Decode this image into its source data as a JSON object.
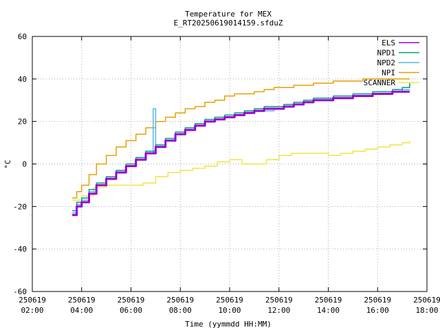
{
  "chart_data": {
    "type": "line",
    "title": "Temperature for MEX",
    "subtitle": "E_RT20250619014159.sfduZ",
    "xlabel": "Time (yymmdd HH:MM)",
    "ylabel": "°C",
    "xlim": [
      2,
      18
    ],
    "ylim": [
      -60,
      60
    ],
    "xticks": [
      {
        "x": 2,
        "date": "250619",
        "time": "02:00"
      },
      {
        "x": 4,
        "date": "250619",
        "time": "04:00"
      },
      {
        "x": 6,
        "date": "250619",
        "time": "06:00"
      },
      {
        "x": 8,
        "date": "250619",
        "time": "08:00"
      },
      {
        "x": 10,
        "date": "250619",
        "time": "10:00"
      },
      {
        "x": 12,
        "date": "250619",
        "time": "12:00"
      },
      {
        "x": 14,
        "date": "250619",
        "time": "14:00"
      },
      {
        "x": 16,
        "date": "250619",
        "time": "16:00"
      },
      {
        "x": 18,
        "date": "250619",
        "time": "18:00"
      }
    ],
    "yticks": [
      -60,
      -40,
      -20,
      0,
      20,
      40,
      60
    ],
    "grid": true,
    "legend_position": "top-right",
    "series": [
      {
        "name": "ELS",
        "color": "#9400d3",
        "x": [
          3.62,
          3.8,
          4.0,
          4.3,
          4.6,
          5.0,
          5.4,
          5.8,
          6.2,
          6.6,
          7.0,
          7.4,
          7.8,
          8.2,
          8.6,
          9.0,
          9.4,
          9.8,
          10.2,
          10.6,
          11.0,
          11.4,
          11.8,
          12.2,
          12.6,
          13.0,
          13.4,
          13.8,
          14.2,
          14.6,
          15.0,
          15.4,
          15.8,
          16.2,
          16.6,
          17.0,
          17.3
        ],
        "y": [
          -24,
          -20,
          -18,
          -14,
          -10,
          -7,
          -4,
          -1,
          2,
          5,
          8,
          11,
          14,
          16,
          18,
          20,
          21,
          22,
          23,
          24,
          25,
          26,
          26,
          27,
          28,
          29,
          30,
          30,
          31,
          31,
          32,
          32,
          33,
          33,
          34,
          34,
          34
        ]
      },
      {
        "name": "NPD1",
        "color": "#009e73",
        "x": [
          3.62,
          3.8,
          4.0,
          4.3,
          4.6,
          5.0,
          5.4,
          5.8,
          6.2,
          6.6,
          7.0,
          7.4,
          7.8,
          8.2,
          8.6,
          9.0,
          9.4,
          9.8,
          10.2,
          10.6,
          11.0,
          11.4,
          11.8,
          12.2,
          12.6,
          13.0,
          13.4,
          13.8,
          14.2,
          14.6,
          15.0,
          15.4,
          15.8,
          16.2,
          16.6,
          17.0,
          17.3
        ],
        "y": [
          -22,
          -18,
          -16,
          -12,
          -9,
          -6,
          -3,
          0,
          3,
          6,
          9,
          12,
          15,
          17,
          19,
          21,
          22,
          23,
          24,
          25,
          26,
          27,
          27,
          28,
          29,
          30,
          31,
          31,
          32,
          32,
          33,
          33,
          34,
          34,
          35,
          36,
          38
        ]
      },
      {
        "name": "NPD2",
        "color": "#56b4e9",
        "x": [
          3.62,
          3.8,
          4.0,
          4.3,
          4.6,
          5.0,
          5.4,
          5.8,
          6.2,
          6.6,
          6.9,
          7.0,
          7.4,
          7.8,
          8.2,
          8.6,
          9.0,
          9.4,
          9.8,
          10.2,
          10.6,
          11.0,
          11.4,
          11.8,
          12.2,
          12.6,
          13.0,
          13.4,
          13.8,
          14.2,
          14.6,
          15.0,
          15.4,
          15.8,
          16.2,
          16.6,
          17.0,
          17.3
        ],
        "y": [
          -23,
          -19,
          -17,
          -13,
          -10,
          -7,
          -4,
          -1,
          2,
          5,
          26,
          8,
          11,
          14,
          16,
          18,
          20,
          21,
          22,
          23,
          24,
          25,
          25,
          26,
          27,
          28,
          29,
          30,
          30,
          31,
          31,
          32,
          32,
          33,
          33,
          34,
          35,
          35
        ]
      },
      {
        "name": "NPI",
        "color": "#e69f00",
        "x": [
          3.62,
          3.8,
          4.0,
          4.3,
          4.6,
          5.0,
          5.4,
          5.8,
          6.2,
          6.6,
          7.0,
          7.4,
          7.8,
          8.2,
          8.6,
          9.0,
          9.4,
          9.8,
          10.2,
          10.6,
          11.0,
          11.4,
          11.8,
          12.2,
          12.6,
          13.0,
          13.4,
          13.8,
          14.2,
          14.6,
          15.0,
          15.4,
          15.8,
          16.2,
          16.6,
          17.0,
          17.3
        ],
        "y": [
          -16,
          -13,
          -10,
          -5,
          0,
          4,
          8,
          11,
          14,
          17,
          20,
          22,
          24,
          26,
          27,
          29,
          30,
          32,
          33,
          33,
          34,
          35,
          36,
          36,
          37,
          37,
          38,
          38,
          39,
          39,
          39,
          40,
          40,
          40,
          40,
          40,
          40
        ]
      },
      {
        "name": "SCANNER",
        "color": "#f0e442",
        "x": [
          3.62,
          4.0,
          4.5,
          5.0,
          5.5,
          6.0,
          6.5,
          7.0,
          7.5,
          8.0,
          8.5,
          9.0,
          9.5,
          10.0,
          10.5,
          11.0,
          11.5,
          12.0,
          12.5,
          13.0,
          13.5,
          14.0,
          14.5,
          15.0,
          15.5,
          16.0,
          16.5,
          17.0,
          17.3
        ],
        "y": [
          -17,
          -15,
          -11,
          -10,
          -10,
          -10,
          -9,
          -6,
          -4,
          -3,
          -2,
          -1,
          1,
          2,
          0,
          0,
          2,
          4,
          5,
          5,
          5,
          4,
          5,
          6,
          7,
          8,
          9,
          10,
          11
        ]
      }
    ]
  }
}
